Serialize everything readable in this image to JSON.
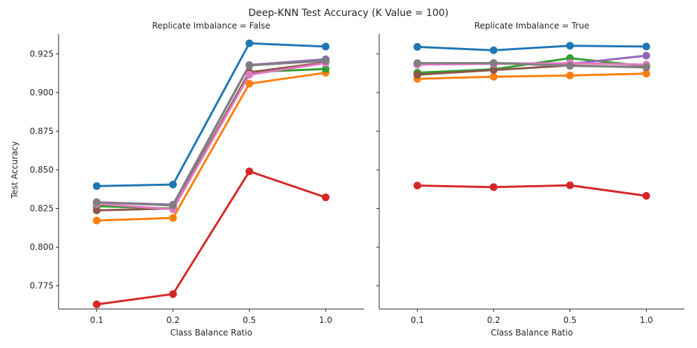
{
  "chart_data": {
    "type": "line",
    "title": "Deep-KNN Test Accuracy (K Value = 100)",
    "colors": [
      "#1f77b4",
      "#ff7f0e",
      "#2ca02c",
      "#d62728",
      "#9467bd",
      "#8c564b",
      "#e377c2",
      "#7f7f7f"
    ],
    "panels": [
      {
        "title": "Replicate Imbalance = False",
        "xlabel": "Class Balance Ratio",
        "ylabel": "Test Accuracy",
        "categories": [
          "0.1",
          "0.2",
          "0.5",
          "1.0"
        ],
        "ylim": [
          0.76,
          0.94
        ],
        "yticks": [
          "0.775",
          "0.800",
          "0.825",
          "0.850",
          "0.875",
          "0.900",
          "0.925"
        ],
        "series": [
          {
            "color": "#1f77b4",
            "values": [
              0.8395,
              0.8405,
              0.9318,
              0.9297
            ]
          },
          {
            "color": "#ff7f0e",
            "values": [
              0.8172,
              0.8189,
              0.9057,
              0.9128
            ]
          },
          {
            "color": "#2ca02c",
            "values": [
              0.8265,
              0.825,
              0.9132,
              0.9152
            ]
          },
          {
            "color": "#d62728",
            "values": [
              0.763,
              0.7697,
              0.849,
              0.8322
            ]
          },
          {
            "color": "#9467bd",
            "values": [
              0.829,
              0.8275,
              0.9178,
              0.9215
            ]
          },
          {
            "color": "#8c564b",
            "values": [
              0.8238,
              0.825,
              0.913,
              0.9195
            ]
          },
          {
            "color": "#e377c2",
            "values": [
              0.828,
              0.8245,
              0.9115,
              0.919
            ]
          },
          {
            "color": "#7f7f7f",
            "values": [
              0.829,
              0.827,
              0.9175,
              0.9205
            ]
          }
        ]
      },
      {
        "title": "Replicate Imbalance = True",
        "xlabel": "Class Balance Ratio",
        "ylabel": "",
        "categories": [
          "0.1",
          "0.2",
          "0.5",
          "1.0"
        ],
        "ylim": [
          0.76,
          0.94
        ],
        "series": [
          {
            "color": "#1f77b4",
            "values": [
              0.9295,
              0.9273,
              0.9302,
              0.9297
            ]
          },
          {
            "color": "#ff7f0e",
            "values": [
              0.9088,
              0.9102,
              0.911,
              0.9122
            ]
          },
          {
            "color": "#2ca02c",
            "values": [
              0.9128,
              0.915,
              0.9222,
              0.917
            ]
          },
          {
            "color": "#d62728",
            "values": [
              0.8398,
              0.8388,
              0.84,
              0.8332
            ]
          },
          {
            "color": "#9467bd",
            "values": [
              0.9185,
              0.919,
              0.9185,
              0.9238
            ]
          },
          {
            "color": "#8c564b",
            "values": [
              0.9115,
              0.9145,
              0.9175,
              0.9162
            ]
          },
          {
            "color": "#e377c2",
            "values": [
              0.918,
              0.9185,
              0.919,
              0.918
            ]
          },
          {
            "color": "#7f7f7f",
            "values": [
              0.919,
              0.919,
              0.9172,
              0.9165
            ]
          }
        ]
      }
    ]
  }
}
